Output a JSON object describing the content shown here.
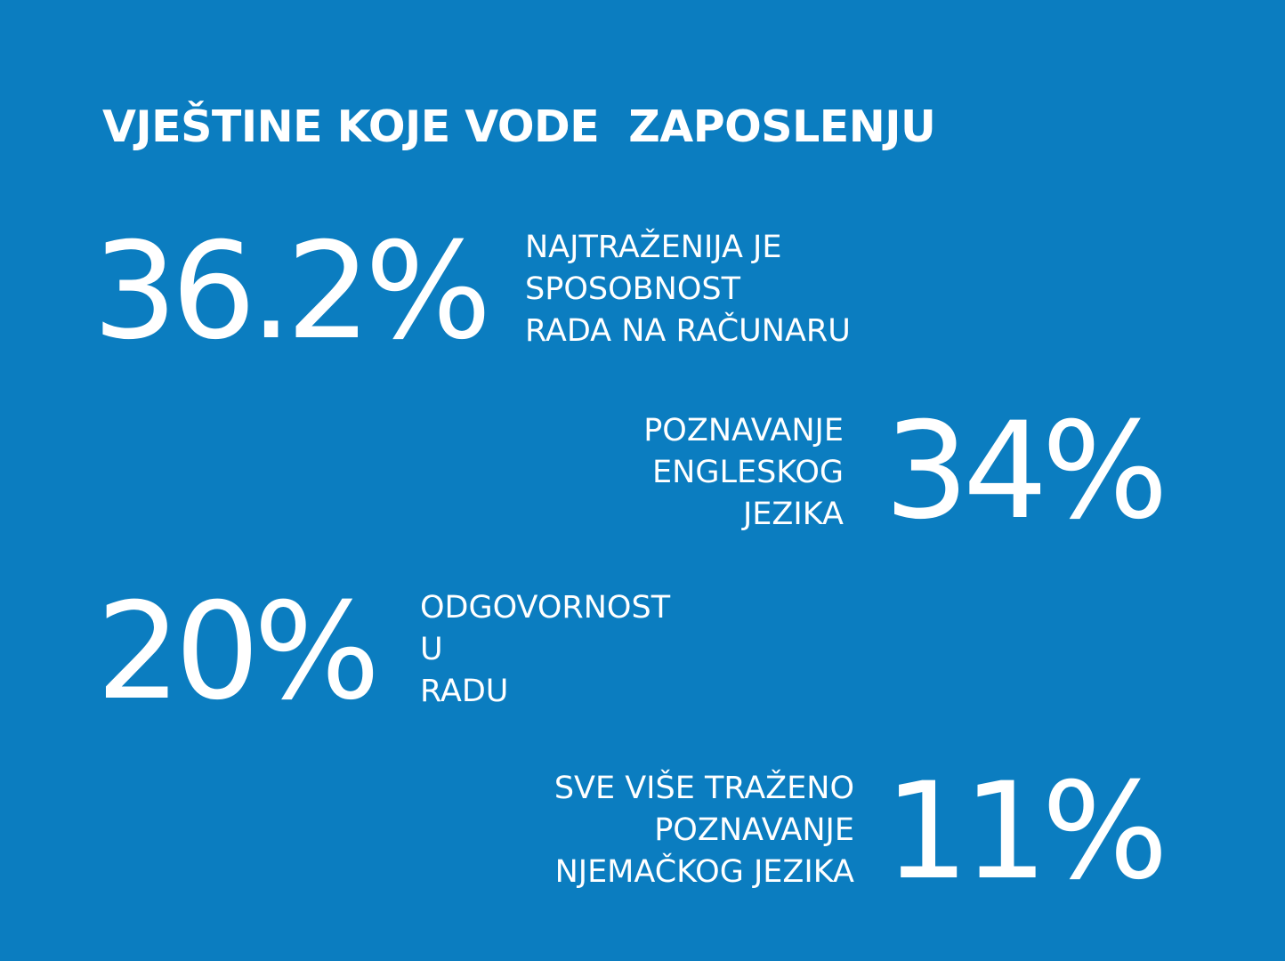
{
  "title": "VJEŠTINE KOJE VODE  ZAPOSLENJU",
  "stats": [
    {
      "value": "36.2%",
      "lines": [
        "NAJTRAŽENIJA JE",
        "SPOSOBNOST",
        "RADA NA RAČUNARU"
      ]
    },
    {
      "value": "34%",
      "lines": [
        "POZNAVANJE",
        "ENGLESKOG",
        "JEZIKA"
      ]
    },
    {
      "value": "20%",
      "lines": [
        "ODGOVORNOST",
        "U",
        "RADU"
      ]
    },
    {
      "value": "11%",
      "lines": [
        "SVE VIŠE TRAŽENO",
        "POZNAVANJE",
        "NJEMAČKOG JEZIKA"
      ]
    }
  ],
  "colors": {
    "background": "#0b7dc0",
    "text": "#ffffff"
  }
}
